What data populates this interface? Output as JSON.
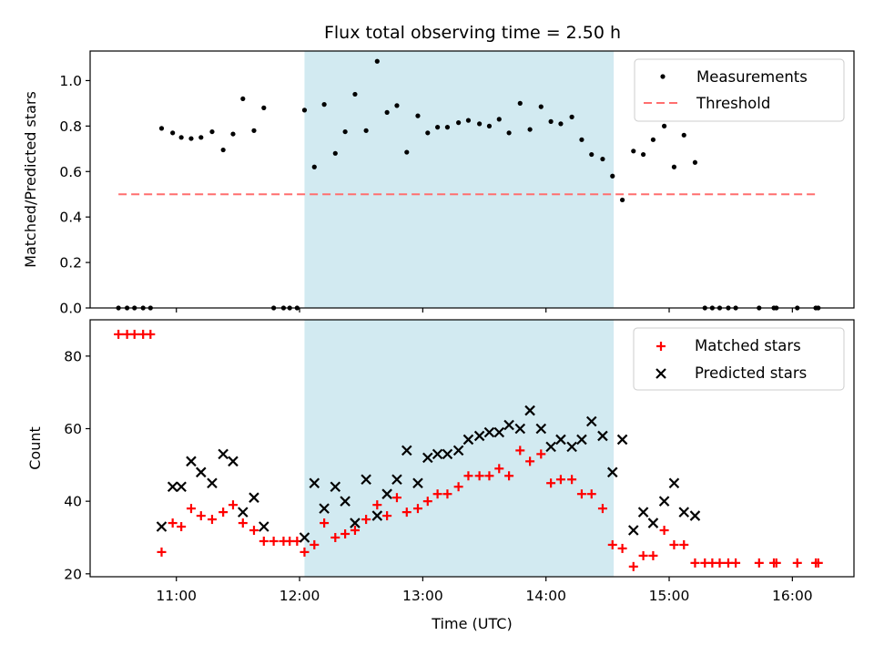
{
  "title": "Flux total observing time = 2.50 h",
  "colors": {
    "measurement": "#000000",
    "threshold": "#ff6f6f",
    "matched": "#ff0000",
    "predicted": "#000000",
    "highlight": "#add8e6"
  },
  "chart_data": [
    {
      "type": "scatter",
      "panel": "top",
      "ylabel": "Matched/Predicted stars",
      "ylim": [
        0,
        1.13
      ],
      "yticks": [
        "0.0",
        "0.2",
        "0.4",
        "0.6",
        "0.8",
        "1.0"
      ],
      "xlim_hours": [
        10.3,
        16.5
      ],
      "highlight_span_hours": [
        12.04,
        14.55
      ],
      "legend_placement": "upper right",
      "threshold": {
        "name": "Threshold",
        "value": 0.5,
        "x_range_hours": [
          10.53,
          16.2
        ]
      },
      "series": [
        {
          "name": "Measurements",
          "marker": "dot",
          "x_hours": [
            10.53,
            10.6,
            10.66,
            10.73,
            10.79,
            10.88,
            10.97,
            11.04,
            11.12,
            11.2,
            11.29,
            11.38,
            11.46,
            11.54,
            11.63,
            11.71,
            11.79,
            11.87,
            11.92,
            11.98,
            12.04,
            12.12,
            12.2,
            12.29,
            12.37,
            12.45,
            12.54,
            12.63,
            12.71,
            12.79,
            12.87,
            12.96,
            13.04,
            13.12,
            13.2,
            13.29,
            13.37,
            13.46,
            13.54,
            13.62,
            13.7,
            13.79,
            13.87,
            13.96,
            14.04,
            14.12,
            14.21,
            14.29,
            14.37,
            14.46,
            14.54,
            14.62,
            14.71,
            14.79,
            14.87,
            14.96,
            15.04,
            15.12,
            15.21,
            15.29,
            15.35,
            15.41,
            15.48,
            15.54,
            15.73,
            15.85,
            15.87,
            16.04,
            16.19,
            16.21
          ],
          "y": [
            0,
            0,
            0,
            0,
            0,
            0.79,
            0.77,
            0.75,
            0.745,
            0.75,
            0.775,
            0.695,
            0.765,
            0.92,
            0.78,
            0.88,
            0,
            0,
            0,
            0,
            0.87,
            0.62,
            0.895,
            0.68,
            0.775,
            0.94,
            0.78,
            1.085,
            0.86,
            0.89,
            0.685,
            0.845,
            0.77,
            0.795,
            0.795,
            0.815,
            0.825,
            0.81,
            0.8,
            0.83,
            0.77,
            0.9,
            0.785,
            0.885,
            0.82,
            0.81,
            0.84,
            0.74,
            0.675,
            0.655,
            0.58,
            0.475,
            0.69,
            0.675,
            0.74,
            0.8,
            0.62,
            0.76,
            0.64,
            0,
            0,
            0,
            0,
            0,
            0,
            0,
            0,
            0,
            0,
            0
          ]
        }
      ]
    },
    {
      "type": "scatter",
      "panel": "bottom",
      "xlabel": "Time (UTC)",
      "ylabel": "Count",
      "ylim": [
        19.2,
        90
      ],
      "yticks": [
        "20",
        "40",
        "60",
        "80"
      ],
      "xlim_hours": [
        10.3,
        16.5
      ],
      "xticks": [
        {
          "hour": 11,
          "label": "11:00"
        },
        {
          "hour": 12,
          "label": "12:00"
        },
        {
          "hour": 13,
          "label": "13:00"
        },
        {
          "hour": 14,
          "label": "14:00"
        },
        {
          "hour": 15,
          "label": "15:00"
        },
        {
          "hour": 16,
          "label": "16:00"
        }
      ],
      "highlight_span_hours": [
        12.04,
        14.55
      ],
      "legend_placement": "upper right",
      "series": [
        {
          "name": "Matched stars",
          "marker": "plus",
          "x_hours": [
            10.53,
            10.6,
            10.66,
            10.73,
            10.79,
            10.88,
            10.97,
            11.04,
            11.12,
            11.2,
            11.29,
            11.38,
            11.46,
            11.54,
            11.63,
            11.71,
            11.79,
            11.87,
            11.92,
            11.98,
            12.04,
            12.12,
            12.2,
            12.29,
            12.37,
            12.45,
            12.54,
            12.63,
            12.71,
            12.79,
            12.87,
            12.96,
            13.04,
            13.12,
            13.2,
            13.29,
            13.37,
            13.46,
            13.54,
            13.62,
            13.7,
            13.79,
            13.87,
            13.96,
            14.04,
            14.12,
            14.21,
            14.29,
            14.37,
            14.46,
            14.54,
            14.62,
            14.71,
            14.79,
            14.87,
            14.96,
            15.04,
            15.12,
            15.21,
            15.29,
            15.35,
            15.41,
            15.48,
            15.54,
            15.73,
            15.85,
            15.87,
            16.04,
            16.19,
            16.21
          ],
          "y": [
            86,
            86,
            86,
            86,
            86,
            26,
            34,
            33,
            38,
            36,
            35,
            37,
            39,
            34,
            32,
            29,
            29,
            29,
            29,
            29,
            26,
            28,
            34,
            30,
            31,
            32,
            35,
            39,
            36,
            41,
            37,
            38,
            40,
            42,
            42,
            44,
            47,
            47,
            47,
            49,
            47,
            54,
            51,
            53,
            45,
            46,
            46,
            42,
            42,
            38,
            28,
            27,
            22,
            25,
            25,
            32,
            28,
            28,
            23,
            23,
            23,
            23,
            23,
            23,
            23,
            23,
            23,
            23,
            23,
            23
          ]
        },
        {
          "name": "Predicted stars",
          "marker": "x",
          "x_hours": [
            10.88,
            10.97,
            11.04,
            11.12,
            11.2,
            11.29,
            11.38,
            11.46,
            11.54,
            11.63,
            11.71,
            12.04,
            12.12,
            12.2,
            12.29,
            12.37,
            12.45,
            12.54,
            12.63,
            12.71,
            12.79,
            12.87,
            12.96,
            13.04,
            13.12,
            13.2,
            13.29,
            13.37,
            13.46,
            13.54,
            13.62,
            13.7,
            13.79,
            13.87,
            13.96,
            14.04,
            14.12,
            14.21,
            14.29,
            14.37,
            14.46,
            14.54,
            14.62,
            14.71,
            14.79,
            14.87,
            14.96,
            15.04,
            15.12,
            15.21
          ],
          "y": [
            33,
            44,
            44,
            51,
            48,
            45,
            53,
            51,
            37,
            41,
            33,
            30,
            45,
            38,
            44,
            40,
            34,
            46,
            36,
            42,
            46,
            54,
            45,
            52,
            53,
            53,
            54,
            57,
            58,
            59,
            59,
            61,
            60,
            65,
            60,
            55,
            57,
            55,
            57,
            62,
            58,
            48,
            57,
            32,
            37,
            34,
            40,
            45,
            37,
            36
          ]
        }
      ]
    }
  ]
}
